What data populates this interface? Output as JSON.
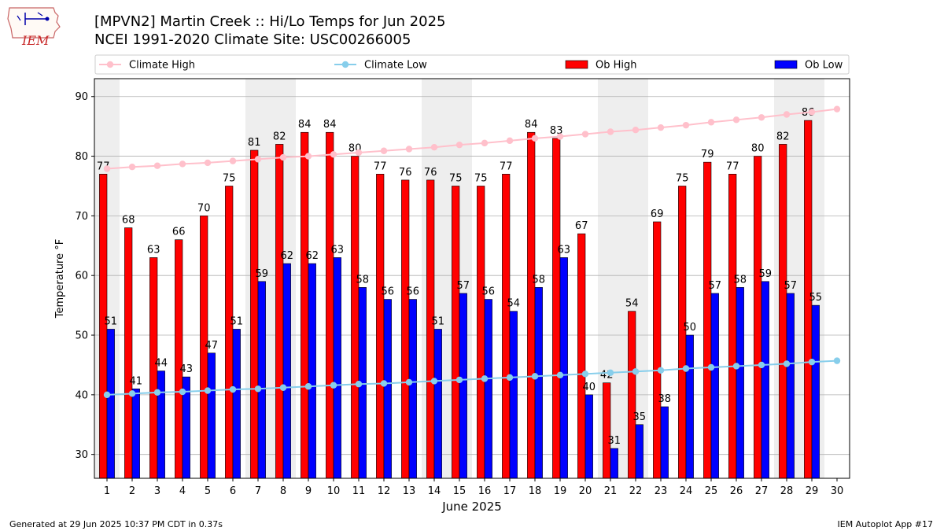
{
  "header": {
    "title_line1": "[MPVN2] Martin Creek :: Hi/Lo Temps for Jun 2025",
    "title_line2": "NCEI 1991-2020 Climate Site: USC00266005",
    "logo_text": "IEM"
  },
  "footer": {
    "left": "Generated at 29 Jun 2025 10:37 PM CDT in 0.37s",
    "right": "IEM Autoplot App #17"
  },
  "colors": {
    "ob_high": "#ff0000",
    "ob_low": "#0000ff",
    "climate_high": "#ffc0cb",
    "climate_low": "#87ceeb",
    "weekend_band": "#eeeeee",
    "grid": "#b0b0b0"
  },
  "chart_data": {
    "type": "bar",
    "xlabel": "June 2025",
    "ylabel": "Temperature °F",
    "ylim": [
      26,
      93
    ],
    "yticks": [
      30,
      40,
      50,
      60,
      70,
      80,
      90
    ],
    "grid": true,
    "legend_placement": "top",
    "categories": [
      "1",
      "2",
      "3",
      "4",
      "5",
      "6",
      "7",
      "8",
      "9",
      "10",
      "11",
      "12",
      "13",
      "14",
      "15",
      "16",
      "17",
      "18",
      "19",
      "20",
      "21",
      "22",
      "23",
      "24",
      "25",
      "26",
      "27",
      "28",
      "29",
      "30"
    ],
    "weekend_days": [
      1,
      7,
      8,
      14,
      15,
      21,
      22,
      28,
      29
    ],
    "series": [
      {
        "name": "Climate High",
        "kind": "line",
        "values": [
          77.9,
          78.2,
          78.4,
          78.7,
          78.9,
          79.2,
          79.5,
          79.8,
          80.0,
          80.3,
          80.6,
          80.9,
          81.2,
          81.5,
          81.9,
          82.2,
          82.6,
          83.0,
          83.3,
          83.7,
          84.1,
          84.4,
          84.8,
          85.2,
          85.7,
          86.1,
          86.5,
          87.0,
          87.4,
          87.9
        ]
      },
      {
        "name": "Climate Low",
        "kind": "line",
        "values": [
          40.0,
          40.2,
          40.4,
          40.5,
          40.7,
          40.9,
          41.0,
          41.2,
          41.4,
          41.6,
          41.8,
          41.9,
          42.1,
          42.3,
          42.5,
          42.7,
          42.9,
          43.1,
          43.3,
          43.5,
          43.7,
          43.9,
          44.1,
          44.4,
          44.6,
          44.8,
          45.0,
          45.2,
          45.5,
          45.7
        ]
      },
      {
        "name": "Ob High",
        "kind": "bar",
        "values": [
          77,
          68,
          63,
          66,
          70,
          75,
          81,
          82,
          84,
          84,
          80,
          77,
          76,
          76,
          75,
          75,
          77,
          84,
          83,
          67,
          42,
          54,
          69,
          75,
          79,
          77,
          80,
          82,
          86,
          null
        ]
      },
      {
        "name": "Ob Low",
        "kind": "bar",
        "values": [
          51,
          41,
          44,
          43,
          47,
          51,
          59,
          62,
          62,
          63,
          58,
          56,
          56,
          51,
          57,
          56,
          54,
          58,
          63,
          40,
          31,
          35,
          38,
          50,
          57,
          58,
          59,
          57,
          55,
          null
        ]
      }
    ]
  }
}
